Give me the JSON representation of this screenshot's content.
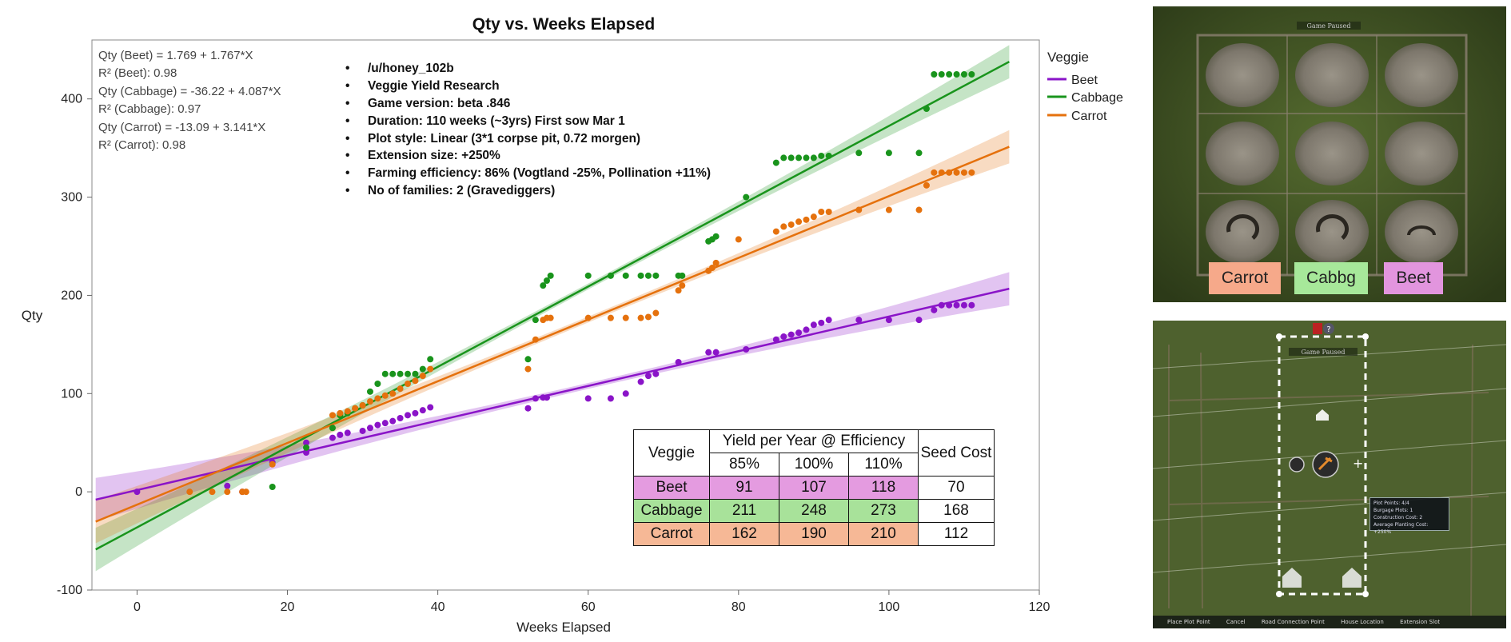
{
  "chart_data": {
    "type": "scatter",
    "title": "Qty vs. Weeks Elapsed",
    "xlabel": "Weeks Elapsed",
    "ylabel": "Qty",
    "xlim": [
      -6,
      120
    ],
    "ylim": [
      -100,
      460
    ],
    "x_ticks": [
      "0",
      "20",
      "40",
      "60",
      "80",
      "100",
      "120"
    ],
    "x_tick_values": [
      0,
      20,
      40,
      60,
      80,
      100,
      120
    ],
    "y_ticks": [
      "-100",
      "0",
      "100",
      "200",
      "300",
      "400"
    ],
    "y_tick_values": [
      -100,
      0,
      100,
      200,
      300,
      400
    ],
    "legend_title": "Veggie",
    "fit_range": [
      -5.5,
      116
    ],
    "annotations": [
      "Qty (Beet) = 1.769 + 1.767*X",
      "R² (Beet): 0.98",
      "Qty (Cabbage) = -36.22 + 4.087*X",
      "R² (Cabbage): 0.97",
      "Qty (Carrot) = -13.09 + 3.141*X",
      "R² (Carrot): 0.98"
    ],
    "series": [
      {
        "name": "Beet",
        "color": "#8a14c8",
        "intercept": 1.769,
        "slope": 1.767,
        "points": [
          [
            0,
            0
          ],
          [
            12,
            6
          ],
          [
            14,
            0
          ],
          [
            18,
            30
          ],
          [
            22.5,
            40
          ],
          [
            22.5,
            50
          ],
          [
            26,
            55
          ],
          [
            27,
            58
          ],
          [
            28,
            60
          ],
          [
            30,
            62
          ],
          [
            31,
            65
          ],
          [
            32,
            68
          ],
          [
            33,
            70
          ],
          [
            34,
            72
          ],
          [
            35,
            75
          ],
          [
            36,
            78
          ],
          [
            37,
            80
          ],
          [
            38,
            83
          ],
          [
            39,
            86
          ],
          [
            52,
            85
          ],
          [
            53,
            95
          ],
          [
            54,
            96
          ],
          [
            54.5,
            96
          ],
          [
            60,
            95
          ],
          [
            63,
            95
          ],
          [
            65,
            100
          ],
          [
            67,
            112
          ],
          [
            68,
            118
          ],
          [
            69,
            120
          ],
          [
            72,
            132
          ],
          [
            76,
            142
          ],
          [
            77,
            142
          ],
          [
            81,
            145
          ],
          [
            85,
            155
          ],
          [
            86,
            158
          ],
          [
            87,
            160
          ],
          [
            88,
            162
          ],
          [
            89,
            165
          ],
          [
            90,
            170
          ],
          [
            91,
            172
          ],
          [
            92,
            175
          ],
          [
            96,
            175
          ],
          [
            100,
            175
          ],
          [
            104,
            175
          ],
          [
            106,
            185
          ],
          [
            107,
            190
          ],
          [
            108,
            190
          ],
          [
            109,
            190
          ],
          [
            110,
            190
          ],
          [
            111,
            190
          ]
        ]
      },
      {
        "name": "Cabbage",
        "color": "#19941c",
        "intercept": -36.22,
        "slope": 4.087,
        "points": [
          [
            18,
            5
          ],
          [
            22.5,
            45
          ],
          [
            26,
            65
          ],
          [
            27,
            78
          ],
          [
            28,
            80
          ],
          [
            29,
            85
          ],
          [
            30,
            88
          ],
          [
            31,
            102
          ],
          [
            32,
            110
          ],
          [
            33,
            120
          ],
          [
            34,
            120
          ],
          [
            35,
            120
          ],
          [
            36,
            120
          ],
          [
            37,
            120
          ],
          [
            38,
            125
          ],
          [
            39,
            135
          ],
          [
            52,
            135
          ],
          [
            53,
            175
          ],
          [
            54,
            210
          ],
          [
            54.5,
            215
          ],
          [
            55,
            220
          ],
          [
            60,
            220
          ],
          [
            63,
            220
          ],
          [
            65,
            220
          ],
          [
            67,
            220
          ],
          [
            68,
            220
          ],
          [
            69,
            220
          ],
          [
            72,
            220
          ],
          [
            72.5,
            220
          ],
          [
            76,
            255
          ],
          [
            76.5,
            257
          ],
          [
            77,
            260
          ],
          [
            81,
            300
          ],
          [
            85,
            335
          ],
          [
            86,
            340
          ],
          [
            87,
            340
          ],
          [
            88,
            340
          ],
          [
            89,
            340
          ],
          [
            90,
            340
          ],
          [
            91,
            342
          ],
          [
            92,
            342
          ],
          [
            96,
            345
          ],
          [
            100,
            345
          ],
          [
            104,
            345
          ],
          [
            105,
            390
          ],
          [
            106,
            425
          ],
          [
            107,
            425
          ],
          [
            108,
            425
          ],
          [
            109,
            425
          ],
          [
            110,
            425
          ],
          [
            111,
            425
          ]
        ]
      },
      {
        "name": "Carrot",
        "color": "#e5710d",
        "intercept": -13.09,
        "slope": 3.141,
        "points": [
          [
            7,
            0
          ],
          [
            10,
            0
          ],
          [
            12,
            0
          ],
          [
            14,
            0
          ],
          [
            14.5,
            0
          ],
          [
            18,
            28
          ],
          [
            26,
            78
          ],
          [
            27,
            80
          ],
          [
            28,
            82
          ],
          [
            29,
            85
          ],
          [
            30,
            88
          ],
          [
            31,
            92
          ],
          [
            32,
            95
          ],
          [
            33,
            98
          ],
          [
            34,
            100
          ],
          [
            35,
            105
          ],
          [
            36,
            110
          ],
          [
            37,
            113
          ],
          [
            38,
            118
          ],
          [
            39,
            125
          ],
          [
            52,
            125
          ],
          [
            53,
            155
          ],
          [
            54,
            175
          ],
          [
            54.5,
            177
          ],
          [
            55,
            177
          ],
          [
            60,
            177
          ],
          [
            63,
            177
          ],
          [
            65,
            177
          ],
          [
            67,
            177
          ],
          [
            68,
            178
          ],
          [
            69,
            182
          ],
          [
            72,
            205
          ],
          [
            72.5,
            210
          ],
          [
            76,
            225
          ],
          [
            76.5,
            228
          ],
          [
            77,
            233
          ],
          [
            80,
            257
          ],
          [
            85,
            265
          ],
          [
            86,
            270
          ],
          [
            87,
            272
          ],
          [
            88,
            275
          ],
          [
            89,
            277
          ],
          [
            90,
            280
          ],
          [
            91,
            285
          ],
          [
            92,
            285
          ],
          [
            96,
            287
          ],
          [
            100,
            287
          ],
          [
            104,
            287
          ],
          [
            105,
            312
          ],
          [
            106,
            325
          ],
          [
            107,
            325
          ],
          [
            108,
            325
          ],
          [
            109,
            325
          ],
          [
            110,
            325
          ],
          [
            111,
            325
          ]
        ]
      }
    ]
  },
  "info_lines": [
    "/u/honey_102b",
    "Veggie Yield Research",
    "Game version: beta .846",
    "Duration: 110 weeks (~3yrs) First sow Mar 1",
    "Plot style: Linear (3*1 corpse pit, 0.72 morgen)",
    "Extension size: +250%",
    "Farming efficiency: 86% (Vogtland -25%, Pollination +11%)",
    "No of families: 2 (Gravediggers)"
  ],
  "yield_table": {
    "header_veggie": "Veggie",
    "header_yield": "Yield per Year @ Efficiency",
    "header_seed": "Seed Cost",
    "efficiencies": [
      "85%",
      "100%",
      "110%"
    ],
    "rows": [
      {
        "name": "Beet",
        "values": [
          "91",
          "107",
          "118"
        ],
        "seed": "70",
        "color": "#e49be0"
      },
      {
        "name": "Cabbage",
        "values": [
          "211",
          "248",
          "273"
        ],
        "seed": "168",
        "color": "#a8e29a"
      },
      {
        "name": "Carrot",
        "values": [
          "162",
          "190",
          "210"
        ],
        "seed": "112",
        "color": "#f6b896"
      }
    ]
  },
  "screenshot_labels": [
    {
      "text": "Carrot",
      "color": "#f6a98a"
    },
    {
      "text": "Cabbg",
      "color": "#a7e89a"
    },
    {
      "text": "Beet",
      "color": "#e295de"
    }
  ],
  "game_ui": {
    "paused_text": "Game Paused",
    "tooltip": [
      "Plot Points: 4/4",
      "Burgage Plots: 1",
      "Construction Cost: 2",
      "Average Planting Cost: +250%"
    ],
    "bottom_bar": [
      "Place Plot Point",
      "Cancel",
      "Road Connection Point",
      "House Location",
      "Extension Slot"
    ]
  }
}
